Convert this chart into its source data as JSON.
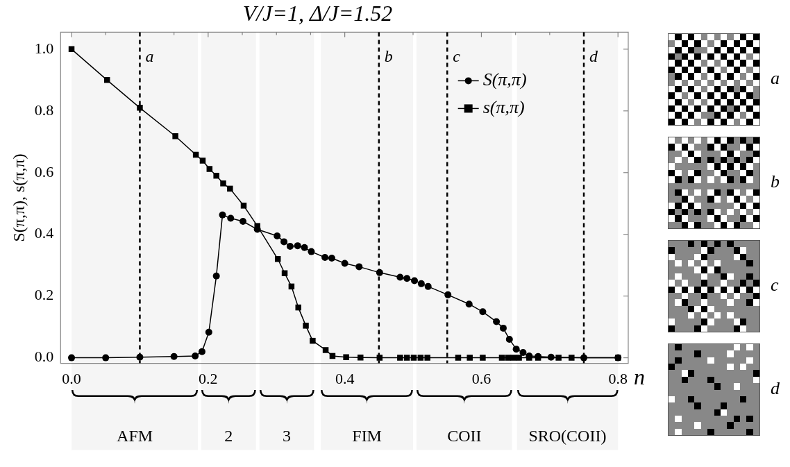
{
  "chart_data": {
    "type": "line",
    "title": "V/J=1, Δ/J=1.52",
    "xlabel": "n",
    "ylabel": "S(π,π), s(π,π)",
    "xlim": [
      -0.016,
      0.815
    ],
    "ylim": [
      -0.018,
      1.055
    ],
    "xticks": [
      {
        "value": 0,
        "label": "0.0"
      },
      {
        "value": 0.05,
        "label": null
      },
      {
        "value": 0.1,
        "label": null
      },
      {
        "value": 0.15,
        "label": null
      },
      {
        "value": 0.2,
        "label": "0.2"
      },
      {
        "value": 0.25,
        "label": null
      },
      {
        "value": 0.3,
        "label": null
      },
      {
        "value": 0.35,
        "label": null
      },
      {
        "value": 0.4,
        "label": "0.4"
      },
      {
        "value": 0.45,
        "label": null
      },
      {
        "value": 0.5,
        "label": null
      },
      {
        "value": 0.55,
        "label": null
      },
      {
        "value": 0.6,
        "label": "0.6"
      },
      {
        "value": 0.65,
        "label": null
      },
      {
        "value": 0.7,
        "label": null
      },
      {
        "value": 0.75,
        "label": null
      },
      {
        "value": 0.8,
        "label": "0.8"
      }
    ],
    "yticks": [
      {
        "value": 0,
        "label": "0.0"
      },
      {
        "value": 0.2,
        "label": "0.2"
      },
      {
        "value": 0.4,
        "label": "0.4"
      },
      {
        "value": 0.6,
        "label": "0.6"
      },
      {
        "value": 0.8,
        "label": "0.8"
      },
      {
        "value": 1,
        "label": "1.0"
      }
    ],
    "grid": false,
    "legend": "top right",
    "line_style": "solid",
    "series": [
      {
        "name": "S(π,π)",
        "color": "#000000",
        "marker": "circle",
        "x": [
          0,
          0.05,
          0.1,
          0.15,
          0.181,
          0.191,
          0.201,
          0.212,
          0.221,
          0.233,
          0.251,
          0.272,
          0.301,
          0.311,
          0.32,
          0.331,
          0.341,
          0.351,
          0.371,
          0.381,
          0.4,
          0.421,
          0.451,
          0.481,
          0.491,
          0.502,
          0.512,
          0.522,
          0.551,
          0.582,
          0.602,
          0.622,
          0.632,
          0.641,
          0.651,
          0.661,
          0.67,
          0.683,
          0.702,
          0.75,
          0.8
        ],
        "values": [
          0,
          0,
          0.002,
          0.004,
          0.006,
          0.02,
          0.083,
          0.265,
          0.463,
          0.452,
          0.442,
          0.416,
          0.395,
          0.376,
          0.361,
          0.363,
          0.357,
          0.344,
          0.325,
          0.323,
          0.306,
          0.295,
          0.276,
          0.261,
          0.257,
          0.25,
          0.24,
          0.231,
          0.204,
          0.174,
          0.149,
          0.117,
          0.096,
          0.06,
          0.028,
          0.017,
          0.006,
          0.004,
          0.002,
          0,
          0
        ]
      },
      {
        "name": "s(π,π)",
        "color": "#000000",
        "marker": "square",
        "x": [
          0,
          0.052,
          0.1,
          0.152,
          0.182,
          0.192,
          0.202,
          0.212,
          0.222,
          0.232,
          0.252,
          0.272,
          0.302,
          0.312,
          0.322,
          0.332,
          0.343,
          0.353,
          0.372,
          0.382,
          0.402,
          0.423,
          0.451,
          0.481,
          0.491,
          0.501,
          0.511,
          0.521,
          0.566,
          0.583,
          0.602,
          0.63,
          0.639,
          0.647,
          0.655,
          0.67,
          0.683,
          0.713,
          0.732,
          0.8
        ],
        "values": [
          1,
          0.9,
          0.81,
          0.718,
          0.658,
          0.639,
          0.612,
          0.59,
          0.565,
          0.548,
          0.493,
          0.427,
          0.32,
          0.274,
          0.231,
          0.163,
          0.104,
          0.055,
          0.025,
          0.006,
          0.002,
          0.001,
          0,
          0,
          0,
          0,
          0,
          0,
          0,
          0,
          0,
          0,
          0,
          0,
          0,
          0,
          0,
          0,
          0,
          0
        ]
      }
    ],
    "ref_lines": [
      {
        "axis": "x",
        "value": 0.1,
        "label": "a",
        "line_style": "dashed"
      },
      {
        "axis": "x",
        "value": 0.45,
        "label": "b",
        "line_style": "dashed"
      },
      {
        "axis": "x",
        "value": 0.55,
        "label": "c",
        "line_style": "dashed"
      },
      {
        "axis": "x",
        "value": 0.75,
        "label": "d",
        "line_style": "dashed"
      }
    ],
    "bands": [
      {
        "axis": "x",
        "from": 0,
        "to": 0.185,
        "label": "AFM",
        "color": "#000000"
      },
      {
        "axis": "x",
        "from": 0.19,
        "to": 0.27,
        "label": "2",
        "color": "#000000"
      },
      {
        "axis": "x",
        "from": 0.275,
        "to": 0.355,
        "label": "3",
        "color": "#000000"
      },
      {
        "axis": "x",
        "from": 0.365,
        "to": 0.5,
        "label": "FIM",
        "color": "#000000"
      },
      {
        "axis": "x",
        "from": 0.505,
        "to": 0.645,
        "label": "COII",
        "color": "#000000"
      },
      {
        "axis": "x",
        "from": 0.652,
        "to": 0.8,
        "label": "SRO(COII)",
        "color": "#000000"
      }
    ]
  }
}
